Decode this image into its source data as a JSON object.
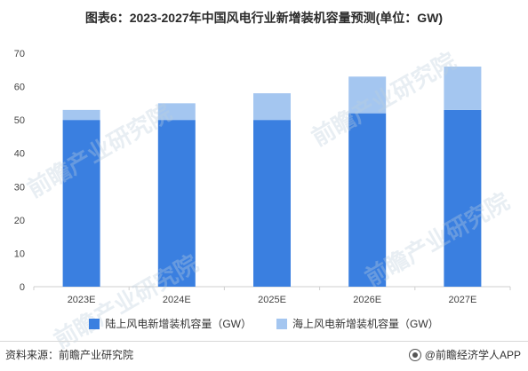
{
  "chart_data": {
    "type": "bar",
    "stacked": true,
    "title": "图表6：2023-2027年中国风电行业新增装机容量预测(单位：GW)",
    "categories": [
      "2023E",
      "2024E",
      "2025E",
      "2026E",
      "2027E"
    ],
    "series": [
      {
        "name": "陆上风电新增装机容量（GW）",
        "values": [
          50,
          50,
          50,
          52,
          53
        ],
        "color": "#3a7fe0"
      },
      {
        "name": "海上风电新增装机容量（GW）",
        "values": [
          3,
          5,
          8,
          11,
          13
        ],
        "color": "#a4c6f0"
      }
    ],
    "ylim": [
      0,
      70
    ],
    "yticks": [
      0,
      10,
      20,
      30,
      40,
      50,
      60,
      70
    ],
    "grid": false,
    "legend_position": "bottom"
  },
  "footer": {
    "source": "资料来源：前瞻产业研究院",
    "brand": "@前瞻经济学人APP"
  },
  "watermark": {
    "text": "前瞻产业研究院"
  }
}
